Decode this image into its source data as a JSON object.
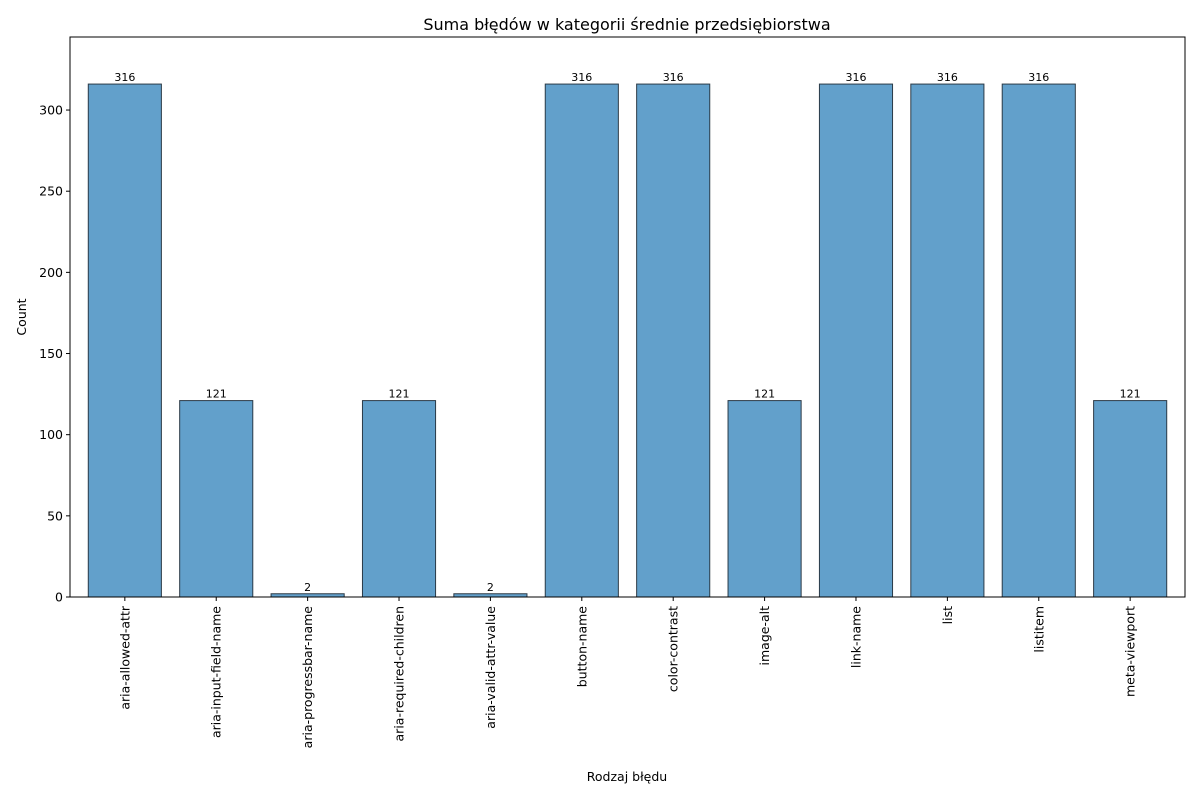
{
  "chart_data": {
    "type": "bar",
    "title": "Suma błędów w kategorii średnie przedsiębiorstwa",
    "xlabel": "Rodzaj błędu",
    "ylabel": "Count",
    "categories": [
      "aria-allowed-attr",
      "aria-input-field-name",
      "aria-progressbar-name",
      "aria-required-children",
      "aria-valid-attr-value",
      "button-name",
      "color-contrast",
      "image-alt",
      "link-name",
      "list",
      "listitem",
      "meta-viewport"
    ],
    "values": [
      316,
      121,
      2,
      121,
      2,
      316,
      316,
      121,
      316,
      316,
      316,
      121
    ],
    "ylim": [
      0,
      345
    ],
    "yticks": [
      0,
      50,
      100,
      150,
      200,
      250,
      300
    ],
    "bar_color": "#62a0cb",
    "bar_edge_color": "#2b3a47",
    "grid": false,
    "legend": "none"
  }
}
